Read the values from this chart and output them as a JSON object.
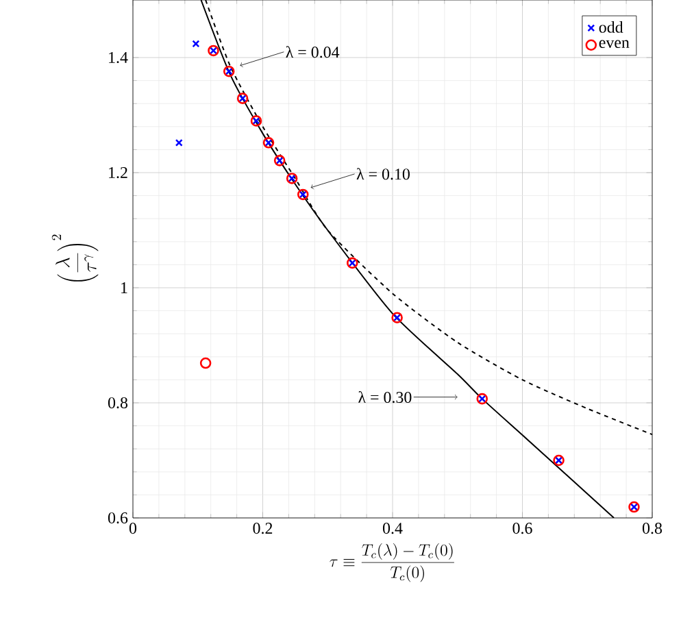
{
  "chart_data": {
    "type": "scatter",
    "xlabel": "\\tau \\equiv \\frac{T_c(\\lambda)-T_c(0)}{T_c(0)}",
    "ylabel": "\\left(\\frac{\\lambda}{\\tau^{\\gamma}}\\right)^2",
    "xlim": [
      0,
      0.8
    ],
    "ylim": [
      0.6,
      1.5
    ],
    "xticks": [
      0,
      0.2,
      0.4,
      0.6,
      0.8
    ],
    "yticks": [
      0.6,
      0.8,
      1,
      1.2,
      1.4
    ],
    "grid": true,
    "legend": "top right",
    "series": [
      {
        "name": "odd",
        "color": "#0000ff",
        "marker": "cross",
        "x": [
          0.071,
          0.097,
          0.124,
          0.148,
          0.169,
          0.19,
          0.209,
          0.226,
          0.245,
          0.262,
          0.338,
          0.407,
          0.538,
          0.656,
          0.772
        ],
        "values": [
          1.252,
          1.424,
          1.412,
          1.376,
          1.329,
          1.29,
          1.252,
          1.221,
          1.19,
          1.162,
          1.043,
          0.948,
          0.807,
          0.7,
          0.619
        ]
      },
      {
        "name": "even",
        "color": "#ff0000",
        "marker": "circle",
        "x": [
          0.112,
          0.124,
          0.148,
          0.169,
          0.19,
          0.209,
          0.226,
          0.245,
          0.262,
          0.338,
          0.407,
          0.538,
          0.656,
          0.772
        ],
        "values": [
          0.869,
          1.412,
          1.376,
          1.329,
          1.29,
          1.252,
          1.221,
          1.19,
          1.162,
          1.043,
          0.948,
          0.807,
          0.7,
          0.619
        ]
      },
      {
        "type": "line",
        "color": "#000000",
        "line_style": "solid",
        "marker": "none",
        "x": [
          0.105,
          0.15,
          0.2,
          0.25,
          0.3,
          0.4,
          0.5,
          0.538,
          0.6,
          0.656,
          0.7,
          0.741
        ],
        "values": [
          1.5,
          1.37,
          1.268,
          1.18,
          1.1,
          0.955,
          0.85,
          0.807,
          0.744,
          0.687,
          0.642,
          0.6
        ]
      },
      {
        "type": "line",
        "color": "#000000",
        "line_style": "dashed",
        "marker": "none",
        "x": [
          0.112,
          0.15,
          0.2,
          0.25,
          0.3,
          0.4,
          0.5,
          0.6,
          0.7,
          0.8
        ],
        "values": [
          1.5,
          1.385,
          1.28,
          1.19,
          1.1,
          0.99,
          0.905,
          0.84,
          0.79,
          0.745
        ]
      }
    ],
    "annotations": [
      {
        "text": "λ = 0.04",
        "x": 0.165,
        "y": 1.386
      },
      {
        "text": "λ = 0.10",
        "x": 0.274,
        "y": 1.174
      },
      {
        "text": "λ = 0.30",
        "x": 0.5,
        "y": 0.81
      }
    ]
  }
}
